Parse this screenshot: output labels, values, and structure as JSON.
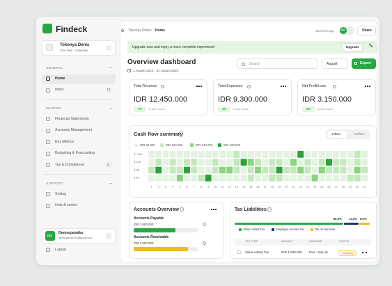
{
  "sidebar": {
    "brand": "Findeck",
    "workspace": {
      "name": "Tokonya Denis",
      "plan": "Free Plan · 3 Member"
    },
    "sections": [
      {
        "title": "GENERAL",
        "items": [
          {
            "label": "Home"
          },
          {
            "label": "Inbox",
            "badge": 12
          }
        ]
      },
      {
        "title": "MASTER",
        "items": [
          {
            "label": "Financial Statements"
          },
          {
            "label": "Accounts Management"
          },
          {
            "label": "Key Metrics"
          },
          {
            "label": "Budgeting & Forecasting"
          },
          {
            "label": "Tax & Compliance",
            "badge": 3
          }
        ]
      },
      {
        "title": "SUPPORT",
        "items": [
          {
            "label": "Setting"
          },
          {
            "label": "Help & center"
          }
        ]
      }
    ],
    "active_item": {
      "section": 0,
      "item": 0
    },
    "user": {
      "initials": "DG",
      "name": "Denisujatmiko",
      "email": "denisujatmiko29@gmail.com"
    },
    "logout": "Logout"
  },
  "topbar": {
    "breadcrumb": [
      "Tokonya Denis",
      "Home"
    ],
    "separator": "/",
    "saved": "Saved 2m ago",
    "avatar": "DS",
    "share": "Share"
  },
  "banner": {
    "text": "Upgrade now and enjoy a more complete experience!",
    "button": "Upgrade"
  },
  "header": {
    "title": "Overview dashboard",
    "date_range": "1 August 2024 - 31 August 2024",
    "search": "Search",
    "month": "August",
    "export": "Export"
  },
  "stats": [
    {
      "title": "Total Revenue",
      "value": "IDR 12.450.000",
      "change": "7%",
      "note": "vs last month"
    },
    {
      "title": "Total Expenses",
      "value": "IDR 9.300.000",
      "change": "4%",
      "note": "vs last month"
    },
    {
      "title": "Net Profit/Loss",
      "value": "IDR 3.150.000",
      "change": "2%",
      "note": "vs last month"
    }
  ],
  "cashflow": {
    "title": "Cash flow summary",
    "tabs": [
      "Inflow",
      "Outflow"
    ],
    "legend": [
      {
        "value": 80000,
        "label": "IDR 80.000",
        "color": "#e4f3e1"
      },
      {
        "value": 160000,
        "label": "IDR 160.000",
        "color": "#c4e7bd"
      },
      {
        "value": 240000,
        "label": "IDR 240.000",
        "color": "#8bd37f"
      },
      {
        "value": 320000,
        "label": "IDR 320.000",
        "color": "#2ea23a"
      }
    ],
    "rows": [
      "12-18h",
      "6-12h",
      "6-9h",
      "0-6h"
    ],
    "days": [
      1,
      2,
      3,
      4,
      5,
      6,
      7,
      8,
      9,
      10,
      11,
      12,
      13,
      14,
      15,
      16,
      17,
      18,
      19,
      20,
      21,
      22,
      23,
      24,
      25,
      26,
      27,
      28,
      29,
      30,
      31
    ],
    "cells": [
      [
        80000,
        80000,
        80000,
        80000,
        80000,
        80000,
        80000,
        80000,
        80000,
        80000,
        80000,
        80000,
        160000,
        80000,
        80000,
        80000,
        80000,
        80000,
        80000,
        80000,
        80000,
        320000,
        80000,
        80000,
        80000,
        80000,
        80000,
        80000,
        80000,
        160000,
        80000
      ],
      [
        80000,
        160000,
        80000,
        160000,
        80000,
        160000,
        160000,
        80000,
        80000,
        160000,
        80000,
        80000,
        160000,
        320000,
        240000,
        160000,
        80000,
        160000,
        160000,
        80000,
        240000,
        80000,
        160000,
        80000,
        160000,
        320000,
        160000,
        160000,
        80000,
        160000,
        80000
      ],
      [
        160000,
        320000,
        80000,
        160000,
        160000,
        320000,
        160000,
        80000,
        80000,
        160000,
        240000,
        240000,
        160000,
        80000,
        160000,
        240000,
        160000,
        160000,
        320000,
        160000,
        160000,
        240000,
        160000,
        80000,
        240000,
        160000,
        160000,
        160000,
        80000,
        240000,
        160000
      ],
      [
        80000,
        80000,
        80000,
        80000,
        240000,
        80000,
        80000,
        160000,
        320000,
        80000,
        80000,
        80000,
        80000,
        80000,
        160000,
        80000,
        80000,
        160000,
        160000,
        80000,
        80000,
        80000,
        80000,
        240000,
        80000,
        80000,
        80000,
        80000,
        160000,
        160000,
        80000
      ]
    ]
  },
  "accounts": {
    "title": "Accounts Overview",
    "items": [
      {
        "label": "Accounts Payable",
        "amount": "IDR 1.800.000",
        "progress": 65,
        "color": "#27a845"
      },
      {
        "label": "Accounts Receivable",
        "amount": "IDR 2.500.000",
        "progress": 85,
        "color": "#f0bd1a"
      }
    ]
  },
  "tax": {
    "title": "Tax Liabilities",
    "breakdown": [
      {
        "name": "Value Added Tax",
        "value": 80.6,
        "label": "80.6%",
        "color": "#27a845"
      },
      {
        "name": "Employee Income Tax",
        "value": 11.6,
        "label": "11.6%",
        "color": "#1f3b63"
      },
      {
        "name": "Tax on Services",
        "value": 8.0,
        "label": "8.0%",
        "color": "#f0bd1a"
      }
    ],
    "columns": [
      "TAX TYPE",
      "AMOUNT",
      "DUE DATE",
      "STATUS"
    ],
    "rows": [
      {
        "type": "Value Added Tax",
        "amount": "IDR 1.000.000",
        "due": "Due : Sep 15",
        "status": "Pending"
      }
    ]
  }
}
